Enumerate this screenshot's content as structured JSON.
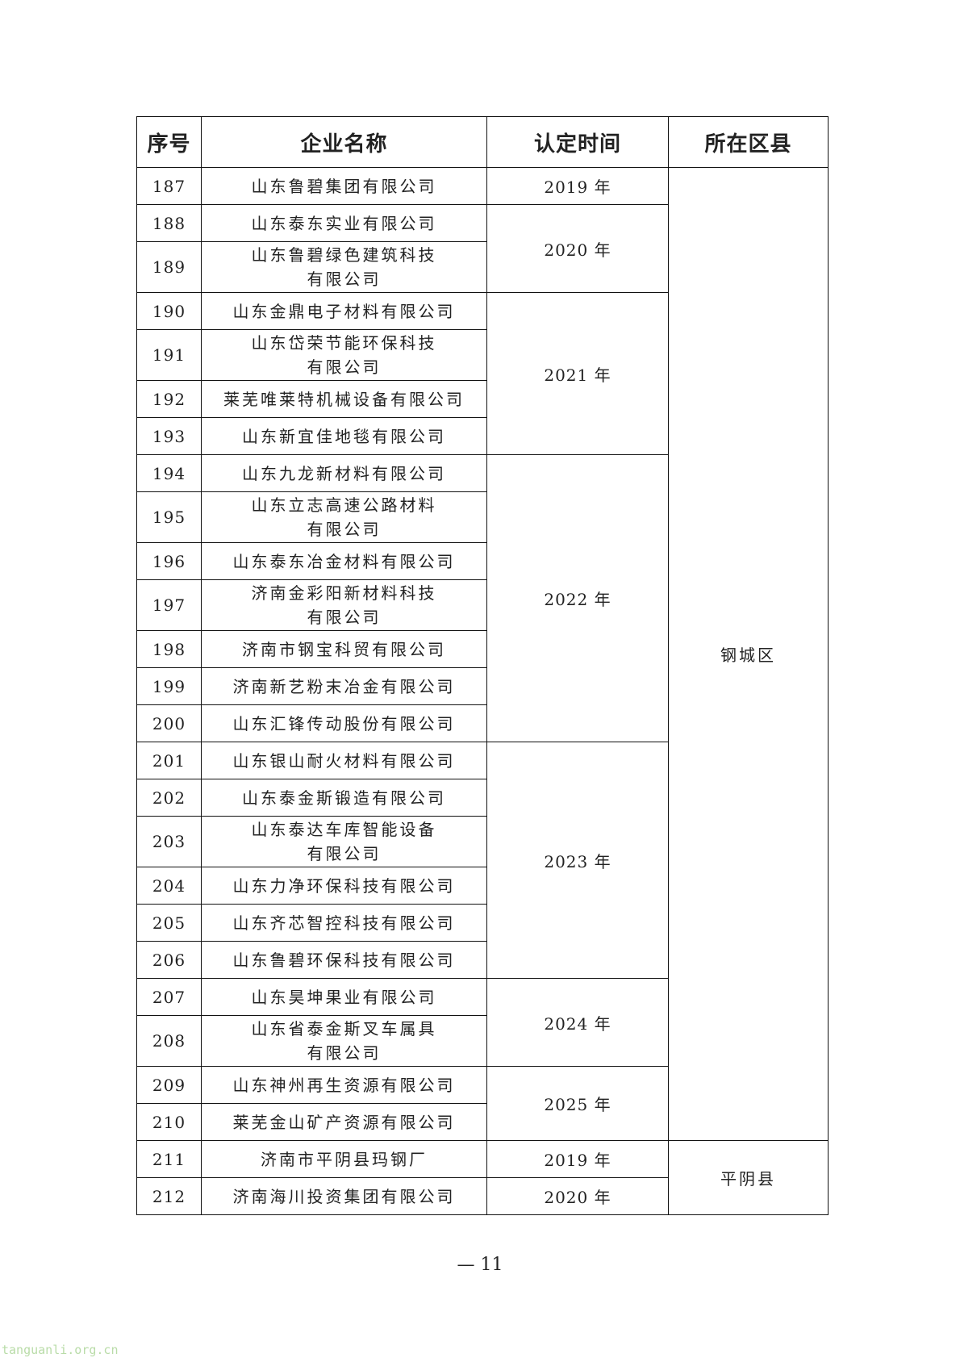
{
  "table": {
    "headers": [
      "序号",
      "企业名称",
      "认定时间",
      "所在区县"
    ],
    "rows": [
      {
        "no": "187",
        "name": "山东鲁碧集团有限公司"
      },
      {
        "no": "188",
        "name": "山东泰东实业有限公司"
      },
      {
        "no": "189",
        "name": "山东鲁碧绿色建筑科技\n有限公司"
      },
      {
        "no": "190",
        "name": "山东金鼎电子材料有限公司"
      },
      {
        "no": "191",
        "name": "山东岱荣节能环保科技\n有限公司"
      },
      {
        "no": "192",
        "name": "莱芜唯莱特机械设备有限公司"
      },
      {
        "no": "193",
        "name": "山东新宜佳地毯有限公司"
      },
      {
        "no": "194",
        "name": "山东九龙新材料有限公司"
      },
      {
        "no": "195",
        "name": "山东立志高速公路材料\n有限公司"
      },
      {
        "no": "196",
        "name": "山东泰东冶金材料有限公司"
      },
      {
        "no": "197",
        "name": "济南金彩阳新材料科技\n有限公司"
      },
      {
        "no": "198",
        "name": "济南市钢宝科贸有限公司"
      },
      {
        "no": "199",
        "name": "济南新艺粉末冶金有限公司"
      },
      {
        "no": "200",
        "name": "山东汇锋传动股份有限公司"
      },
      {
        "no": "201",
        "name": "山东银山耐火材料有限公司"
      },
      {
        "no": "202",
        "name": "山东泰金斯锻造有限公司"
      },
      {
        "no": "203",
        "name": "山东泰达车库智能设备\n有限公司"
      },
      {
        "no": "204",
        "name": "山东力净环保科技有限公司"
      },
      {
        "no": "205",
        "name": "山东齐芯智控科技有限公司"
      },
      {
        "no": "206",
        "name": "山东鲁碧环保科技有限公司"
      },
      {
        "no": "207",
        "name": "山东昊坤果业有限公司"
      },
      {
        "no": "208",
        "name": "山东省泰金斯叉车属具\n有限公司"
      },
      {
        "no": "209",
        "name": "山东神州再生资源有限公司"
      },
      {
        "no": "210",
        "name": "莱芜金山矿产资源有限公司"
      },
      {
        "no": "211",
        "name": "济南市平阴县玛钢厂"
      },
      {
        "no": "212",
        "name": "济南海川投资集团有限公司"
      }
    ],
    "years": [
      "2019 年",
      "2020 年",
      "2021 年",
      "2022 年",
      "2023 年",
      "2024 年",
      "2025 年",
      "2019 年",
      "2020 年"
    ],
    "districts": [
      "钢城区",
      "平阴县"
    ]
  },
  "footer": {
    "page_number": "— 11"
  },
  "watermark": "tanguanli.org.cn"
}
